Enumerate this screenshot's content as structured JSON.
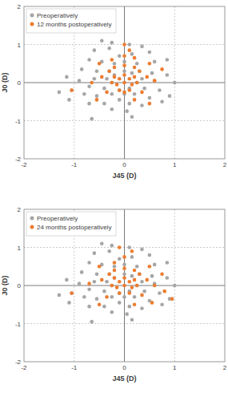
{
  "chart_data": [
    {
      "type": "scatter",
      "x_label": "J45 (D)",
      "y_label": "J0 (D)",
      "xlim": [
        -2,
        2
      ],
      "ylim": [
        -2,
        2
      ],
      "xticks": [
        -2,
        -1,
        0,
        1,
        2
      ],
      "yticks": [
        -2,
        -1,
        0,
        1,
        2
      ],
      "grid": true,
      "legend": "top-left",
      "marker": "circle",
      "series": [
        {
          "name": "Preoperatively",
          "color": "#a6a6a6",
          "x": [
            -0.45,
            -0.25,
            -0.6,
            0.1,
            0.35,
            0.5,
            -0.3,
            0.15,
            -0.1,
            0.6,
            0.85,
            -0.7,
            -0.45,
            -0.2,
            0.0,
            0.25,
            -0.85,
            -0.55,
            -0.3,
            0.3,
            0.55,
            0.85,
            -1.15,
            -0.9,
            -0.6,
            -0.35,
            0.35,
            0.6,
            1.0,
            -1.3,
            -1.05,
            -0.7,
            -0.4,
            0.4,
            0.7,
            0.9,
            -1.1,
            -0.8,
            -0.55,
            -0.25,
            0.2,
            0.5,
            0.75,
            -0.4,
            -0.1,
            0.1,
            0.35,
            -0.7,
            -0.25,
            0.05,
            -0.65,
            0.15,
            -0.2,
            0.15,
            -0.1,
            0.1,
            0.0,
            0.0,
            0.25,
            -0.25
          ],
          "values": [
            1.1,
            1.05,
            0.85,
            1.0,
            0.95,
            0.8,
            0.9,
            0.75,
            0.7,
            0.55,
            0.6,
            0.6,
            0.55,
            0.5,
            0.55,
            0.5,
            0.35,
            0.3,
            0.3,
            0.3,
            0.25,
            0.2,
            0.15,
            0.05,
            0.1,
            0.1,
            0.1,
            0.05,
            0.0,
            -0.25,
            -0.2,
            -0.1,
            -0.15,
            -0.15,
            -0.2,
            -0.35,
            -0.45,
            -0.3,
            -0.35,
            -0.3,
            -0.3,
            -0.4,
            -0.5,
            -0.55,
            -0.45,
            -0.55,
            -0.6,
            -0.55,
            -0.7,
            -0.75,
            -0.95,
            -0.9,
            0.2,
            0.25,
            -0.2,
            -0.15,
            0.3,
            -0.3,
            0.0,
            0.0
          ]
        },
        {
          "name": "12 months postoperatively",
          "color": "#ed7d31",
          "x": [
            0.0,
            0.1,
            -0.1,
            0.15,
            -0.15,
            0.0,
            0.2,
            -0.2,
            0.25,
            -0.25,
            0.1,
            -0.1,
            0.0,
            0.3,
            -0.3,
            0.0,
            0.2,
            -0.2,
            0.45,
            -0.45,
            0.35,
            -0.35,
            0.0,
            0.2,
            -0.25,
            0.5,
            -0.5,
            0.6,
            -0.65,
            0.1,
            0.75,
            -0.55,
            0.2,
            -1.05,
            0.5,
            0.0
          ],
          "values": [
            0.0,
            0.1,
            0.1,
            -0.05,
            -0.05,
            0.2,
            0.15,
            0.15,
            0.0,
            0.0,
            -0.2,
            -0.2,
            -0.25,
            0.3,
            0.3,
            0.45,
            0.4,
            0.4,
            0.15,
            0.15,
            -0.25,
            -0.25,
            0.7,
            0.65,
            0.6,
            0.5,
            0.5,
            0.05,
            0.0,
            0.85,
            0.35,
            -0.45,
            -0.45,
            -0.2,
            -0.55,
            1.0
          ]
        }
      ]
    },
    {
      "type": "scatter",
      "x_label": "J45 (D)",
      "y_label": "J0 (D)",
      "xlim": [
        -2,
        2
      ],
      "ylim": [
        -2,
        2
      ],
      "xticks": [
        -2,
        -1,
        0,
        1,
        2
      ],
      "yticks": [
        -2,
        -1,
        0,
        1,
        2
      ],
      "grid": true,
      "legend": "top-left",
      "marker": "circle",
      "series": [
        {
          "name": "Preoperatively",
          "color": "#a6a6a6",
          "x": [
            -0.45,
            -0.25,
            -0.6,
            0.1,
            0.35,
            0.5,
            -0.3,
            0.15,
            -0.1,
            0.6,
            0.85,
            -0.7,
            -0.45,
            -0.2,
            0.0,
            0.25,
            -0.85,
            -0.55,
            -0.3,
            0.3,
            0.55,
            0.85,
            -1.15,
            -0.9,
            -0.6,
            -0.35,
            0.35,
            0.6,
            1.0,
            -1.3,
            -1.05,
            -0.7,
            -0.4,
            0.4,
            0.7,
            0.9,
            -1.1,
            -0.8,
            -0.55,
            -0.25,
            0.2,
            0.5,
            0.75,
            -0.4,
            -0.1,
            0.1,
            0.35,
            -0.7,
            -0.25,
            0.05,
            -0.65,
            0.15,
            -0.2,
            0.15,
            -0.1,
            0.1,
            0.0,
            0.0,
            0.25,
            -0.25
          ],
          "values": [
            1.1,
            1.05,
            0.85,
            1.0,
            0.95,
            0.8,
            0.9,
            0.75,
            0.7,
            0.55,
            0.6,
            0.6,
            0.55,
            0.5,
            0.55,
            0.5,
            0.35,
            0.3,
            0.3,
            0.3,
            0.25,
            0.2,
            0.15,
            0.05,
            0.1,
            0.1,
            0.1,
            0.05,
            0.0,
            -0.25,
            -0.2,
            -0.1,
            -0.15,
            -0.15,
            -0.2,
            -0.35,
            -0.45,
            -0.3,
            -0.35,
            -0.3,
            -0.3,
            -0.4,
            -0.5,
            -0.55,
            -0.45,
            -0.55,
            -0.6,
            -0.55,
            -0.7,
            -0.75,
            -0.95,
            -0.9,
            0.2,
            0.25,
            -0.2,
            -0.15,
            0.3,
            -0.3,
            0.0,
            0.0
          ]
        },
        {
          "name": "24 months postoperatively",
          "color": "#ed7d31",
          "x": [
            0.0,
            0.1,
            -0.1,
            0.15,
            -0.15,
            0.0,
            0.2,
            -0.2,
            0.25,
            -0.25,
            0.1,
            -0.1,
            0.3,
            -0.3,
            0.0,
            0.2,
            -0.2,
            0.45,
            -0.45,
            0.35,
            -0.35,
            0.0,
            -0.2,
            0.5,
            -0.5,
            0.6,
            -0.7,
            0.15,
            0.75,
            -0.5,
            0.2,
            -1.05,
            0.55,
            -0.1,
            0.8,
            0.95
          ],
          "values": [
            0.0,
            0.1,
            0.1,
            -0.05,
            -0.05,
            0.2,
            0.15,
            0.2,
            0.0,
            0.0,
            -0.2,
            -0.2,
            0.3,
            0.3,
            0.45,
            0.4,
            0.4,
            0.15,
            0.15,
            -0.25,
            -0.3,
            0.75,
            0.6,
            0.5,
            0.5,
            0.0,
            0.05,
            0.9,
            0.3,
            -0.5,
            -0.5,
            -0.2,
            -0.45,
            1.0,
            -0.15,
            -0.35
          ]
        }
      ]
    }
  ]
}
